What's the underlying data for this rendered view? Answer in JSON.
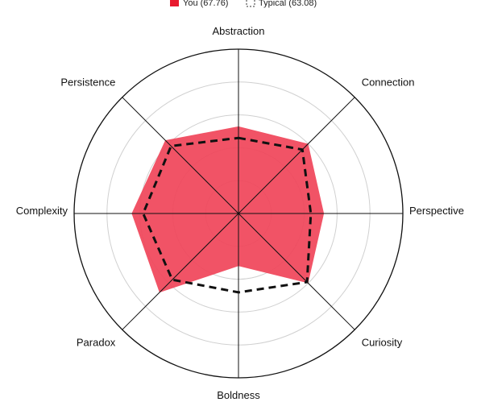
{
  "chart_data": {
    "type": "radar",
    "legend_position": "top",
    "categories": [
      "Abstraction",
      "Connection",
      "Perspective",
      "Curiosity",
      "Boldness",
      "Paradox",
      "Complexity",
      "Persistence"
    ],
    "range": [
      0,
      100
    ],
    "grid_rings": 5,
    "series": [
      {
        "name": "You (67.76)",
        "style": "filled",
        "color": "#f0465a",
        "values": [
          53,
          60,
          52,
          60,
          32,
          68,
          65,
          63
        ]
      },
      {
        "name": "Typical (63.08)",
        "style": "dashed-outline",
        "color": "#111111",
        "values": [
          46,
          55,
          44,
          59,
          48,
          57,
          58,
          58
        ]
      }
    ]
  }
}
